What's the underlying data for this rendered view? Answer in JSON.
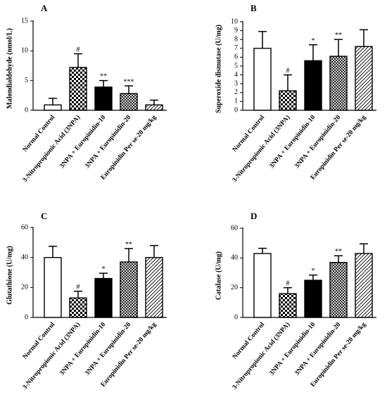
{
  "categories": [
    "Normal Control",
    "3-Nitropropionic Acid (3NPA)",
    "3NPA + Europinidin-10",
    "3NPA + Europinidin-20",
    "Europinidin Per se-20 mg/kg"
  ],
  "colors": {
    "axis": "#000000",
    "bar_outline": "#000000",
    "solid_fill": "#000000",
    "background": "#ffffff"
  },
  "bar_styles": [
    "open",
    "checker",
    "solid",
    "crosshatch",
    "diagonal"
  ],
  "chart_data": [
    {
      "type": "bar",
      "panel_letter": "A",
      "ylabel": "Malondialdehyde (nmol/L)",
      "ylim": [
        0,
        15
      ],
      "yticks": [
        0,
        5,
        10,
        15
      ],
      "categories": [
        "Normal Control",
        "3-Nitropropionic Acid (3NPA)",
        "3NPA + Europinidin-10",
        "3NPA + Europinidin-20",
        "Europinidin Per se-20 mg/kg"
      ],
      "values": [
        0.9,
        7.2,
        3.9,
        2.8,
        0.9
      ],
      "errors": [
        1.1,
        2.3,
        1.1,
        1.3,
        0.8
      ],
      "annotations": [
        "",
        "#",
        "**",
        "***",
        ""
      ]
    },
    {
      "type": "bar",
      "panel_letter": "B",
      "ylabel": "Superoxide dismutase (U/mg)",
      "ylim": [
        0,
        10
      ],
      "yticks": [
        0,
        1,
        2,
        3,
        4,
        5,
        6,
        7,
        8,
        9,
        10
      ],
      "categories": [
        "Normal Control",
        "3-Nitropropionic Acid (3NPA)",
        "3NPA + Europinidin-10",
        "3NPA + Europinidin-20",
        "Europinidin Per se-20 mg/kg"
      ],
      "values": [
        7.0,
        2.2,
        5.6,
        6.1,
        7.2
      ],
      "errors": [
        1.9,
        1.8,
        1.8,
        1.9,
        1.9
      ],
      "annotations": [
        "",
        "#",
        "*",
        "**",
        ""
      ]
    },
    {
      "type": "bar",
      "panel_letter": "C",
      "ylabel": "Glutathione (U/mg)",
      "ylim": [
        0,
        60
      ],
      "yticks": [
        0,
        20,
        40,
        60
      ],
      "categories": [
        "Normal Control",
        "3-Nitropropionic Acid (3NPA)",
        "3NPA + Europinidin-10",
        "3NPA + Europinidin-20",
        "Europinidin Per se-20 mg/kg"
      ],
      "values": [
        40,
        13,
        26,
        37,
        40
      ],
      "errors": [
        7.5,
        4.5,
        3.5,
        9,
        8
      ],
      "annotations": [
        "",
        "#",
        "*",
        "**",
        ""
      ]
    },
    {
      "type": "bar",
      "panel_letter": "D",
      "ylabel": "Catalase (U/mg)",
      "ylim": [
        0,
        60
      ],
      "yticks": [
        0,
        20,
        40,
        60
      ],
      "categories": [
        "Normal Control",
        "3-Nitropropionic Acid (3NPA)",
        "3NPA + Europinidin-10",
        "3NPA + Europinidin-20",
        "Europinidin Per se-20 mg/kg"
      ],
      "values": [
        43,
        16,
        25,
        37,
        43
      ],
      "errors": [
        3.5,
        4,
        3.5,
        4.5,
        6.5
      ],
      "annotations": [
        "",
        "#",
        "*",
        "**",
        ""
      ]
    }
  ]
}
